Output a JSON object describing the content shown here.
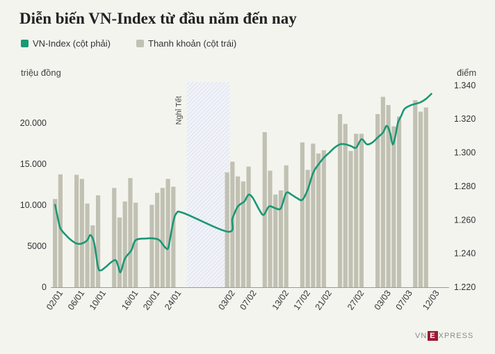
{
  "header": {
    "title": "Diễn biến VN-Index từ đầu năm đến nay"
  },
  "legend": {
    "line_label": "VN-Index (cột phải)",
    "bar_label": "Thanh khoản (cột trái)"
  },
  "axes": {
    "left_unit": "triệu đồng",
    "right_unit": "điểm"
  },
  "colors": {
    "line": "#1a9874",
    "bar": "#c1c1b3",
    "background": "#f4f4ef",
    "holiday_hatch": "#c7d1e4"
  },
  "brand": {
    "logo_text": "VNEXPRESS"
  },
  "chart_data": {
    "type": "bar",
    "title": "Diễn biến VN-Index từ đầu năm đến nay",
    "x_ticks": [
      "02/01",
      "06/01",
      "10/01",
      "16/01",
      "20/01",
      "24/01",
      "03/02",
      "07/02",
      "13/02",
      "17/02",
      "21/02",
      "27/02",
      "03/03",
      "07/03",
      "12/03"
    ],
    "x_tick_days": [
      1,
      5,
      9,
      15,
      19,
      23,
      33,
      37,
      43,
      47,
      51,
      57,
      62,
      66,
      71
    ],
    "x_range_days": [
      -0.8,
      73.3
    ],
    "holiday": {
      "label": "Nghỉ Tết",
      "start_day": 24.5,
      "end_day": 32.5
    },
    "y_left": {
      "label": "triệu đồng",
      "range": [
        0,
        25000
      ],
      "ticks": [
        0,
        5000,
        10000,
        15000,
        20000
      ],
      "tick_labels": [
        "0",
        "5000",
        "10.000",
        "15.000",
        "20.000"
      ]
    },
    "y_right": {
      "label": "điểm",
      "range": [
        1220,
        1342
      ],
      "ticks": [
        1220,
        1240,
        1260,
        1280,
        1300,
        1320,
        1340
      ],
      "tick_labels": [
        "1.220",
        "1.240",
        "1.260",
        "1.280",
        "1.300",
        "1.320",
        "1.340"
      ]
    },
    "series": [
      {
        "name": "Thanh khoản (cột trái)",
        "type": "bar",
        "axis": "left",
        "points": [
          {
            "day": 0,
            "value": 10750
          },
          {
            "day": 1,
            "value": 13750
          },
          {
            "day": 4,
            "value": 13700
          },
          {
            "day": 5,
            "value": 13200
          },
          {
            "day": 6,
            "value": 10200
          },
          {
            "day": 7,
            "value": 7550
          },
          {
            "day": 8,
            "value": 11200
          },
          {
            "day": 11,
            "value": 12100
          },
          {
            "day": 12,
            "value": 8500
          },
          {
            "day": 13,
            "value": 10450
          },
          {
            "day": 14,
            "value": 13300
          },
          {
            "day": 15,
            "value": 10300
          },
          {
            "day": 18,
            "value": 10050
          },
          {
            "day": 19,
            "value": 11500
          },
          {
            "day": 20,
            "value": 12100
          },
          {
            "day": 21,
            "value": 13200
          },
          {
            "day": 22,
            "value": 12250
          },
          {
            "day": 32,
            "value": 14000
          },
          {
            "day": 33,
            "value": 15300
          },
          {
            "day": 34,
            "value": 13500
          },
          {
            "day": 35,
            "value": 12900
          },
          {
            "day": 36,
            "value": 14700
          },
          {
            "day": 39,
            "value": 18900
          },
          {
            "day": 40,
            "value": 14200
          },
          {
            "day": 41,
            "value": 11300
          },
          {
            "day": 42,
            "value": 11800
          },
          {
            "day": 43,
            "value": 14850
          },
          {
            "day": 46,
            "value": 17650
          },
          {
            "day": 47,
            "value": 14300
          },
          {
            "day": 48,
            "value": 17500
          },
          {
            "day": 49,
            "value": 16300
          },
          {
            "day": 50,
            "value": 16700
          },
          {
            "day": 53,
            "value": 21100
          },
          {
            "day": 54,
            "value": 19900
          },
          {
            "day": 55,
            "value": 16600
          },
          {
            "day": 56,
            "value": 18700
          },
          {
            "day": 57,
            "value": 18700
          },
          {
            "day": 60,
            "value": 21100
          },
          {
            "day": 61,
            "value": 23200
          },
          {
            "day": 62,
            "value": 22200
          },
          {
            "day": 63,
            "value": 19600
          },
          {
            "day": 64,
            "value": 20800
          },
          {
            "day": 67,
            "value": 22800
          },
          {
            "day": 68,
            "value": 21400
          },
          {
            "day": 69,
            "value": 21900
          }
        ]
      },
      {
        "name": "VN-Index (cột phải)",
        "type": "line",
        "axis": "right",
        "points": [
          {
            "day": 0,
            "value": 1269
          },
          {
            "day": 0.6,
            "value": 1260
          },
          {
            "day": 1,
            "value": 1255
          },
          {
            "day": 2,
            "value": 1251
          },
          {
            "day": 3,
            "value": 1248
          },
          {
            "day": 4,
            "value": 1246
          },
          {
            "day": 5,
            "value": 1246
          },
          {
            "day": 6,
            "value": 1248
          },
          {
            "day": 6.6,
            "value": 1251
          },
          {
            "day": 7.3,
            "value": 1246
          },
          {
            "day": 8,
            "value": 1232
          },
          {
            "day": 8.5,
            "value": 1230
          },
          {
            "day": 9.4,
            "value": 1232
          },
          {
            "day": 10.5,
            "value": 1235
          },
          {
            "day": 11.3,
            "value": 1236
          },
          {
            "day": 11.8,
            "value": 1232
          },
          {
            "day": 12.2,
            "value": 1229
          },
          {
            "day": 13,
            "value": 1237
          },
          {
            "day": 14.2,
            "value": 1242
          },
          {
            "day": 15,
            "value": 1248
          },
          {
            "day": 17,
            "value": 1249
          },
          {
            "day": 18.4,
            "value": 1249
          },
          {
            "day": 19.4,
            "value": 1248
          },
          {
            "day": 20.4,
            "value": 1244
          },
          {
            "day": 21,
            "value": 1243
          },
          {
            "day": 21.4,
            "value": 1249
          },
          {
            "day": 22,
            "value": 1259
          },
          {
            "day": 22.6,
            "value": 1264
          },
          {
            "day": 24,
            "value": 1264
          },
          {
            "day": 32.2,
            "value": 1253
          },
          {
            "day": 33,
            "value": 1261
          },
          {
            "day": 34,
            "value": 1268
          },
          {
            "day": 35.2,
            "value": 1271
          },
          {
            "day": 36,
            "value": 1275
          },
          {
            "day": 36.8,
            "value": 1273
          },
          {
            "day": 38,
            "value": 1266
          },
          {
            "day": 38.8,
            "value": 1263
          },
          {
            "day": 39.8,
            "value": 1268
          },
          {
            "day": 41,
            "value": 1267
          },
          {
            "day": 42,
            "value": 1267
          },
          {
            "day": 43,
            "value": 1276
          },
          {
            "day": 44,
            "value": 1275
          },
          {
            "day": 45,
            "value": 1273
          },
          {
            "day": 46,
            "value": 1272
          },
          {
            "day": 47,
            "value": 1278
          },
          {
            "day": 48,
            "value": 1288
          },
          {
            "day": 49,
            "value": 1293
          },
          {
            "day": 50,
            "value": 1297
          },
          {
            "day": 51,
            "value": 1300
          },
          {
            "day": 52,
            "value": 1303
          },
          {
            "day": 53,
            "value": 1305
          },
          {
            "day": 54,
            "value": 1305
          },
          {
            "day": 55,
            "value": 1304
          },
          {
            "day": 56,
            "value": 1303
          },
          {
            "day": 57,
            "value": 1308
          },
          {
            "day": 58,
            "value": 1305
          },
          {
            "day": 59,
            "value": 1306
          },
          {
            "day": 60,
            "value": 1309
          },
          {
            "day": 61,
            "value": 1312
          },
          {
            "day": 61.7,
            "value": 1316
          },
          {
            "day": 62.3,
            "value": 1312
          },
          {
            "day": 62.8,
            "value": 1305
          },
          {
            "day": 63.3,
            "value": 1310
          },
          {
            "day": 63.8,
            "value": 1318
          },
          {
            "day": 64.4,
            "value": 1322
          },
          {
            "day": 65,
            "value": 1326
          },
          {
            "day": 66,
            "value": 1328
          },
          {
            "day": 67,
            "value": 1329
          },
          {
            "day": 68,
            "value": 1330
          },
          {
            "day": 69,
            "value": 1332
          },
          {
            "day": 70,
            "value": 1335
          }
        ]
      }
    ]
  }
}
